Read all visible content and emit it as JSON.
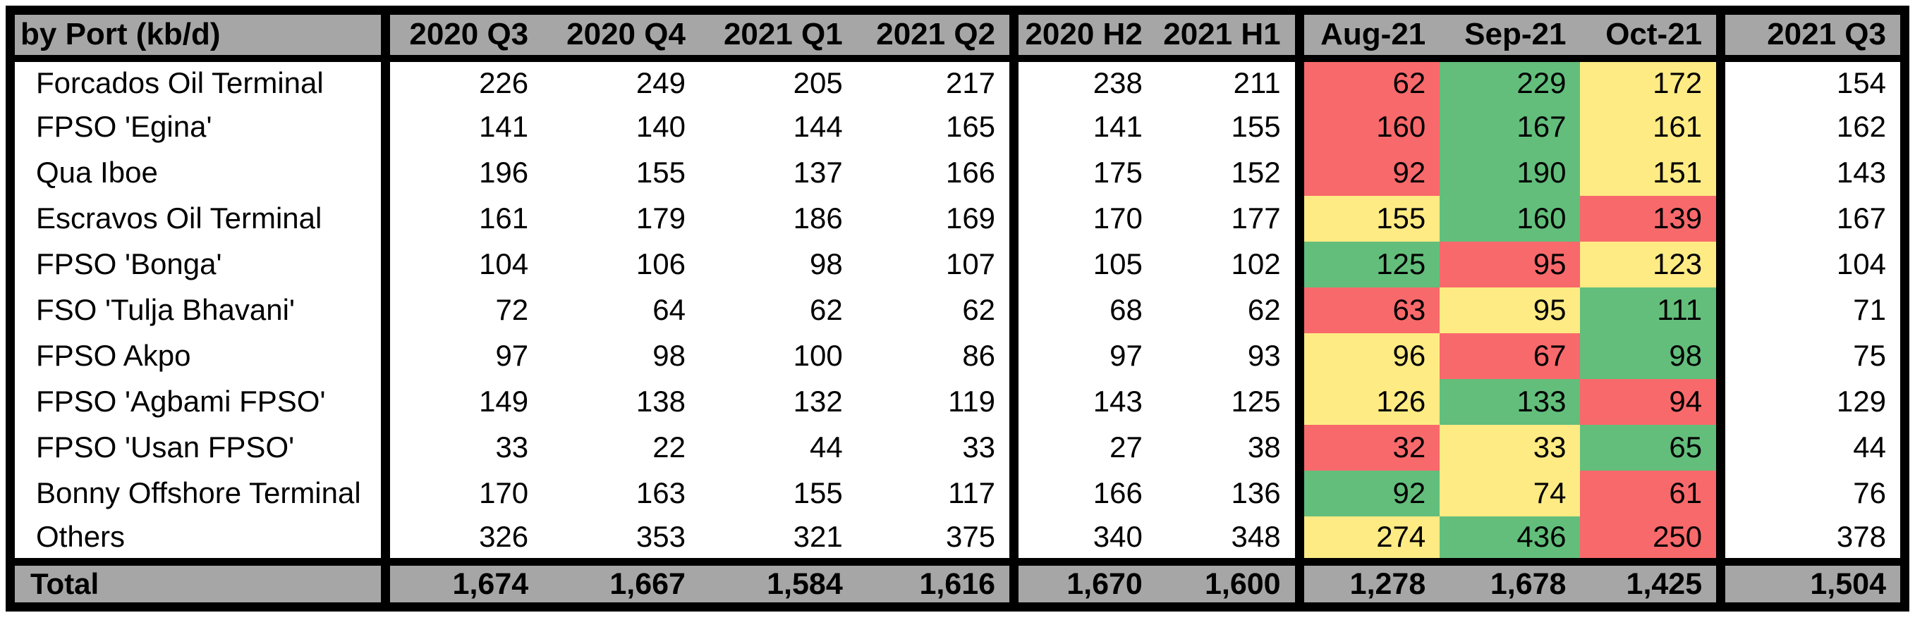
{
  "styles": {
    "header_bg": "#A6A6A6",
    "total_bg": "#A6A6A6",
    "border_color": "#000000",
    "cond_red": "#F8696B",
    "cond_yellow": "#FFEB84",
    "cond_green": "#63BE7B"
  },
  "chart_data": {
    "type": "table",
    "corner_label": "by Port (kb/d)",
    "columns": [
      "2020 Q3",
      "2020 Q4",
      "2021 Q1",
      "2021 Q2",
      "2020 H2",
      "2021 H1",
      "Aug-21",
      "Sep-21",
      "Oct-21",
      "2021 Q3"
    ],
    "column_groups": [
      [
        "2020 Q3",
        "2020 Q4",
        "2021 Q1",
        "2021 Q2"
      ],
      [
        "2020 H2",
        "2021 H1"
      ],
      [
        "Aug-21",
        "Sep-21",
        "Oct-21"
      ],
      [
        "2021 Q3"
      ]
    ],
    "conditional_format_columns": [
      "Aug-21",
      "Sep-21",
      "Oct-21"
    ],
    "rows": [
      {
        "port": "Forcados Oil Terminal",
        "values": [
          226,
          249,
          205,
          217,
          238,
          211,
          62,
          229,
          172,
          154
        ],
        "month_cell_colors": [
          "red",
          "green",
          "yellow"
        ]
      },
      {
        "port": "FPSO 'Egina'",
        "values": [
          141,
          140,
          144,
          165,
          141,
          155,
          160,
          167,
          161,
          162
        ],
        "month_cell_colors": [
          "red",
          "green",
          "yellow"
        ]
      },
      {
        "port": "Qua Iboe",
        "values": [
          196,
          155,
          137,
          166,
          175,
          152,
          92,
          190,
          151,
          143
        ],
        "month_cell_colors": [
          "red",
          "green",
          "yellow"
        ]
      },
      {
        "port": "Escravos Oil Terminal",
        "values": [
          161,
          179,
          186,
          169,
          170,
          177,
          155,
          160,
          139,
          167
        ],
        "month_cell_colors": [
          "yellow",
          "green",
          "red"
        ]
      },
      {
        "port": "FPSO 'Bonga'",
        "values": [
          104,
          106,
          98,
          107,
          105,
          102,
          125,
          95,
          123,
          104
        ],
        "month_cell_colors": [
          "green",
          "red",
          "yellow"
        ]
      },
      {
        "port": "FSO 'Tulja Bhavani'",
        "values": [
          72,
          64,
          62,
          62,
          68,
          62,
          63,
          95,
          111,
          71
        ],
        "month_cell_colors": [
          "red",
          "yellow",
          "green"
        ]
      },
      {
        "port": "FPSO Akpo",
        "values": [
          97,
          98,
          100,
          86,
          97,
          93,
          96,
          67,
          98,
          75
        ],
        "month_cell_colors": [
          "yellow",
          "red",
          "green"
        ]
      },
      {
        "port": "FPSO 'Agbami FPSO'",
        "values": [
          149,
          138,
          132,
          119,
          143,
          125,
          126,
          133,
          94,
          129
        ],
        "month_cell_colors": [
          "yellow",
          "green",
          "red"
        ]
      },
      {
        "port": "FPSO 'Usan FPSO'",
        "values": [
          33,
          22,
          44,
          33,
          27,
          38,
          32,
          33,
          65,
          44
        ],
        "month_cell_colors": [
          "red",
          "yellow",
          "green"
        ]
      },
      {
        "port": "Bonny Offshore Terminal",
        "values": [
          170,
          163,
          155,
          117,
          166,
          136,
          92,
          74,
          61,
          76
        ],
        "month_cell_colors": [
          "green",
          "yellow",
          "red"
        ]
      },
      {
        "port": "Others",
        "values": [
          326,
          353,
          321,
          375,
          340,
          348,
          274,
          436,
          250,
          378
        ],
        "month_cell_colors": [
          "yellow",
          "green",
          "red"
        ]
      }
    ],
    "total_row": {
      "label": "Total",
      "values": [
        1674,
        1667,
        1584,
        1616,
        1670,
        1600,
        1278,
        1678,
        1425,
        1504
      ]
    }
  }
}
